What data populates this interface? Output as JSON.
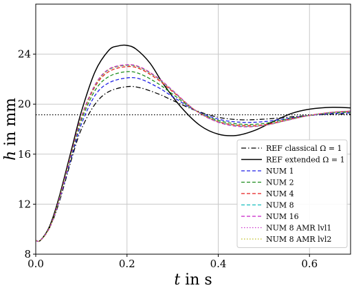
{
  "chart_data": {
    "type": "line",
    "xlabel": "t in s",
    "ylabel": "h in mm",
    "xlim": [
      0.0,
      0.69
    ],
    "ylim": [
      8,
      28
    ],
    "xticks": [
      "0.0",
      "0.2",
      "0.4",
      "0.6"
    ],
    "xtick_values": [
      0.0,
      0.2,
      0.4,
      0.6
    ],
    "yticks": [
      "8",
      "12",
      "16",
      "20",
      "24"
    ],
    "ytick_values": [
      8,
      12,
      16,
      20,
      24
    ],
    "grid": true,
    "legend_position": "lower-right",
    "reference_line": {
      "y": 19.15,
      "style": "dotted",
      "color": "#000000"
    },
    "series": [
      {
        "name": "REF classical Ω = 1",
        "color": "#000000",
        "dash": "dashdot",
        "x": [
          0.0,
          0.01,
          0.03,
          0.05,
          0.08,
          0.1,
          0.13,
          0.16,
          0.2,
          0.23,
          0.27,
          0.3,
          0.35,
          0.4,
          0.45,
          0.5,
          0.55,
          0.6,
          0.65,
          0.69
        ],
        "y": [
          9.1,
          9.1,
          10.1,
          12.0,
          15.8,
          18.0,
          20.0,
          21.0,
          21.4,
          21.3,
          20.8,
          20.3,
          19.5,
          18.95,
          18.75,
          18.8,
          18.95,
          19.1,
          19.2,
          19.2
        ]
      },
      {
        "name": "REF extended Ω = 1",
        "color": "#000000",
        "dash": "solid",
        "x": [
          0.0,
          0.01,
          0.03,
          0.05,
          0.08,
          0.1,
          0.13,
          0.16,
          0.18,
          0.2,
          0.22,
          0.25,
          0.28,
          0.32,
          0.36,
          0.4,
          0.44,
          0.48,
          0.52,
          0.56,
          0.6,
          0.65,
          0.69
        ],
        "y": [
          9.1,
          9.1,
          10.2,
          12.4,
          16.6,
          19.4,
          22.6,
          24.3,
          24.65,
          24.7,
          24.4,
          23.3,
          21.6,
          19.7,
          18.3,
          17.6,
          17.5,
          17.9,
          18.6,
          19.25,
          19.6,
          19.75,
          19.7
        ]
      },
      {
        "name": "NUM 1",
        "color": "#1f1fe6",
        "dash": "dashed",
        "x": [
          0.0,
          0.01,
          0.03,
          0.05,
          0.08,
          0.1,
          0.13,
          0.16,
          0.2,
          0.23,
          0.27,
          0.3,
          0.35,
          0.4,
          0.45,
          0.5,
          0.55,
          0.6,
          0.65,
          0.69
        ],
        "y": [
          9.1,
          9.1,
          10.1,
          12.1,
          16.0,
          18.4,
          20.7,
          21.7,
          22.1,
          22.0,
          21.3,
          20.6,
          19.5,
          18.8,
          18.55,
          18.6,
          18.85,
          19.1,
          19.25,
          19.3
        ]
      },
      {
        "name": "NUM 2",
        "color": "#1a8c1a",
        "dash": "dashed",
        "x": [
          0.0,
          0.01,
          0.03,
          0.05,
          0.08,
          0.1,
          0.13,
          0.16,
          0.2,
          0.23,
          0.27,
          0.3,
          0.35,
          0.4,
          0.45,
          0.5,
          0.55,
          0.6,
          0.65,
          0.69
        ],
        "y": [
          9.1,
          9.1,
          10.1,
          12.2,
          16.2,
          18.7,
          21.1,
          22.2,
          22.6,
          22.4,
          21.6,
          20.8,
          19.5,
          18.7,
          18.4,
          18.45,
          18.8,
          19.1,
          19.3,
          19.35
        ]
      },
      {
        "name": "NUM 4",
        "color": "#e61f1f",
        "dash": "dashed",
        "x": [
          0.0,
          0.01,
          0.03,
          0.05,
          0.08,
          0.1,
          0.13,
          0.16,
          0.2,
          0.23,
          0.27,
          0.3,
          0.35,
          0.4,
          0.45,
          0.5,
          0.55,
          0.6,
          0.65,
          0.69
        ],
        "y": [
          9.1,
          9.1,
          10.1,
          12.2,
          16.3,
          18.9,
          21.4,
          22.6,
          23.0,
          22.8,
          21.9,
          21.0,
          19.5,
          18.6,
          18.3,
          18.35,
          18.75,
          19.1,
          19.35,
          19.4
        ]
      },
      {
        "name": "NUM 8",
        "color": "#17bfbf",
        "dash": "dashed",
        "x": [
          0.0,
          0.01,
          0.03,
          0.05,
          0.08,
          0.1,
          0.13,
          0.16,
          0.2,
          0.23,
          0.27,
          0.3,
          0.35,
          0.4,
          0.45,
          0.5,
          0.55,
          0.6,
          0.65,
          0.69
        ],
        "y": [
          9.1,
          9.1,
          10.1,
          12.2,
          16.3,
          18.95,
          21.5,
          22.75,
          23.1,
          22.9,
          22.0,
          21.05,
          19.5,
          18.6,
          18.25,
          18.3,
          18.7,
          19.1,
          19.35,
          19.45
        ]
      },
      {
        "name": "NUM 16",
        "color": "#c71fc7",
        "dash": "dashed",
        "x": [
          0.0,
          0.01,
          0.03,
          0.05,
          0.08,
          0.1,
          0.13,
          0.16,
          0.2,
          0.23,
          0.27,
          0.3,
          0.35,
          0.4,
          0.45,
          0.5,
          0.55,
          0.6,
          0.65,
          0.69
        ],
        "y": [
          9.1,
          9.1,
          10.1,
          12.2,
          16.35,
          19.0,
          21.55,
          22.8,
          23.15,
          22.95,
          22.05,
          21.1,
          19.5,
          18.55,
          18.2,
          18.3,
          18.7,
          19.1,
          19.35,
          19.45
        ]
      },
      {
        "name": "NUM 8 AMR lvl1",
        "color": "#cc33cc",
        "dash": "dotted",
        "x": [
          0.0,
          0.01,
          0.03,
          0.05,
          0.08,
          0.1,
          0.13,
          0.16,
          0.2,
          0.23,
          0.27,
          0.3,
          0.35,
          0.4,
          0.45,
          0.5,
          0.55,
          0.6,
          0.65,
          0.69
        ],
        "y": [
          9.1,
          9.1,
          10.1,
          12.2,
          16.3,
          18.95,
          21.5,
          22.75,
          23.1,
          22.9,
          22.0,
          21.05,
          19.5,
          18.6,
          18.25,
          18.3,
          18.7,
          19.1,
          19.35,
          19.45
        ]
      },
      {
        "name": "NUM 8 AMR lvl2",
        "color": "#bdbd1f",
        "dash": "dotted",
        "x": [
          0.0,
          0.01,
          0.03,
          0.05,
          0.08,
          0.1,
          0.13,
          0.16,
          0.2,
          0.23,
          0.27,
          0.3,
          0.35,
          0.4,
          0.45,
          0.5,
          0.55,
          0.6,
          0.65,
          0.69
        ],
        "y": [
          9.1,
          9.1,
          10.1,
          12.2,
          16.3,
          18.95,
          21.5,
          22.75,
          23.1,
          22.9,
          22.0,
          21.05,
          19.5,
          18.6,
          18.25,
          18.3,
          18.7,
          19.1,
          19.35,
          19.45
        ]
      }
    ]
  }
}
